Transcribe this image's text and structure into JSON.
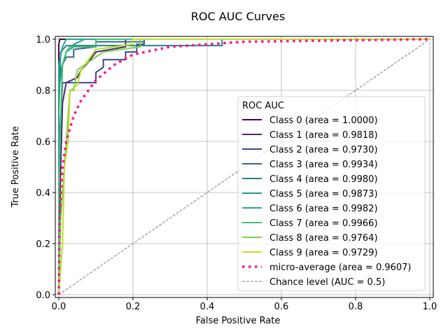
{
  "chart_data": {
    "type": "line",
    "title": "ROC AUC Curves",
    "xlabel": "False Positive Rate",
    "ylabel": "True Positive Rate",
    "xlim": [
      -0.05,
      1.05
    ],
    "ylim": [
      -0.05,
      1.05
    ],
    "xticks": [
      "0.0",
      "0.2",
      "0.4",
      "0.6",
      "0.8",
      "1.0"
    ],
    "yticks": [
      "0.0",
      "0.2",
      "0.4",
      "0.6",
      "0.8",
      "1.0"
    ],
    "grid": true,
    "legend": {
      "title": "ROC AUC",
      "placement": "lower-right"
    },
    "series": [
      {
        "name": "Class 0 (area = 1.0000)",
        "color": "#440154",
        "style": "solid",
        "points": [
          [
            0,
            0
          ],
          [
            0,
            0.98
          ],
          [
            0.003,
            1
          ],
          [
            1,
            1
          ]
        ]
      },
      {
        "name": "Class 1 (area = 0.9818)",
        "color": "#482878",
        "style": "solid",
        "points": [
          [
            0,
            0
          ],
          [
            0,
            0.1
          ],
          [
            0.005,
            0.5
          ],
          [
            0.01,
            0.75
          ],
          [
            0.02,
            0.83
          ],
          [
            0.05,
            0.85
          ],
          [
            0.06,
            0.88
          ],
          [
            0.08,
            0.91
          ],
          [
            0.09,
            0.93
          ],
          [
            0.1,
            0.95
          ],
          [
            0.18,
            0.97
          ],
          [
            0.18,
            1
          ],
          [
            1,
            1
          ]
        ]
      },
      {
        "name": "Class 2 (area = 0.9730)",
        "color": "#3e4989",
        "style": "solid",
        "points": [
          [
            0,
            0
          ],
          [
            0,
            0.55
          ],
          [
            0.01,
            0.83
          ],
          [
            0.1,
            0.83
          ],
          [
            0.1,
            0.87
          ],
          [
            0.12,
            0.89
          ],
          [
            0.12,
            0.92
          ],
          [
            0.18,
            0.92
          ],
          [
            0.18,
            0.95
          ],
          [
            0.21,
            0.95
          ],
          [
            0.21,
            0.98
          ],
          [
            0.23,
            0.98
          ],
          [
            0.23,
            1
          ],
          [
            1,
            1
          ]
        ]
      },
      {
        "name": "Class 3 (area = 0.9934)",
        "color": "#31688e",
        "style": "solid",
        "points": [
          [
            0,
            0
          ],
          [
            0,
            0.85
          ],
          [
            0.01,
            0.9
          ],
          [
            0.02,
            0.93
          ],
          [
            0.04,
            0.93
          ],
          [
            0.04,
            0.96
          ],
          [
            0.1,
            0.97
          ],
          [
            0.1,
            0.99
          ],
          [
            0.23,
            0.99
          ],
          [
            0.23,
            1
          ],
          [
            1,
            1
          ]
        ]
      },
      {
        "name": "Class 4 (area = 0.9980)",
        "color": "#26828e",
        "style": "solid",
        "points": [
          [
            0,
            0
          ],
          [
            0,
            0.72
          ],
          [
            0.005,
            0.95
          ],
          [
            0.02,
            0.975
          ],
          [
            0.44,
            0.975
          ],
          [
            0.44,
            1
          ],
          [
            1,
            1
          ]
        ]
      },
      {
        "name": "Class 5 (area = 0.9873)",
        "color": "#1f9e89",
        "style": "solid",
        "points": [
          [
            0,
            0
          ],
          [
            0,
            0.8
          ],
          [
            0.01,
            0.9
          ],
          [
            0.02,
            0.95
          ],
          [
            0.04,
            0.97
          ],
          [
            0.04,
            0.98
          ],
          [
            0.07,
            1
          ],
          [
            1,
            1
          ]
        ]
      },
      {
        "name": "Class 6 (area = 0.9982)",
        "color": "#22a884",
        "style": "solid",
        "points": [
          [
            0,
            0
          ],
          [
            0,
            0.9
          ],
          [
            0.01,
            0.97
          ],
          [
            0.02,
            1
          ],
          [
            1,
            1
          ]
        ]
      },
      {
        "name": "Class 7 (area = 0.9966)",
        "color": "#44bf70",
        "style": "solid",
        "points": [
          [
            0,
            0
          ],
          [
            0,
            0.45
          ],
          [
            0.01,
            0.9
          ],
          [
            0.02,
            0.95
          ],
          [
            0.03,
            0.97
          ],
          [
            0.1,
            0.97
          ],
          [
            0.1,
            1
          ],
          [
            1,
            1
          ]
        ]
      },
      {
        "name": "Class 8 (area = 0.9764)",
        "color": "#7ad151",
        "style": "solid",
        "points": [
          [
            0,
            0
          ],
          [
            0.005,
            0.3
          ],
          [
            0.02,
            0.6
          ],
          [
            0.03,
            0.8
          ],
          [
            0.04,
            0.8
          ],
          [
            0.05,
            0.88
          ],
          [
            0.07,
            0.9
          ],
          [
            0.1,
            0.93
          ],
          [
            0.12,
            0.95
          ],
          [
            0.22,
            0.97
          ],
          [
            0.22,
            1
          ],
          [
            1,
            1
          ]
        ]
      },
      {
        "name": "Class 9 (area = 0.9729)",
        "color": "#bddf26",
        "style": "solid",
        "points": [
          [
            0,
            0
          ],
          [
            0.01,
            0.2
          ],
          [
            0.015,
            0.5
          ],
          [
            0.025,
            0.6
          ],
          [
            0.03,
            0.8
          ],
          [
            0.05,
            0.82
          ],
          [
            0.06,
            0.88
          ],
          [
            0.08,
            0.92
          ],
          [
            0.1,
            0.96
          ],
          [
            0.2,
            0.98
          ],
          [
            0.2,
            1
          ],
          [
            1,
            1
          ]
        ]
      },
      {
        "name": "micro-average (area = 0.9607)",
        "color": "#ff1493",
        "style": "dotted",
        "points": [
          [
            0,
            0
          ],
          [
            0.002,
            0.3
          ],
          [
            0.01,
            0.5
          ],
          [
            0.02,
            0.6
          ],
          [
            0.04,
            0.7
          ],
          [
            0.06,
            0.76
          ],
          [
            0.1,
            0.84
          ],
          [
            0.15,
            0.9
          ],
          [
            0.2,
            0.94
          ],
          [
            0.3,
            0.97
          ],
          [
            0.5,
            0.99
          ],
          [
            1,
            1
          ]
        ]
      },
      {
        "name": "Chance level (AUC = 0.5)",
        "color": "#808080",
        "style": "dashed",
        "points": [
          [
            0,
            0
          ],
          [
            1,
            1
          ]
        ]
      }
    ]
  }
}
